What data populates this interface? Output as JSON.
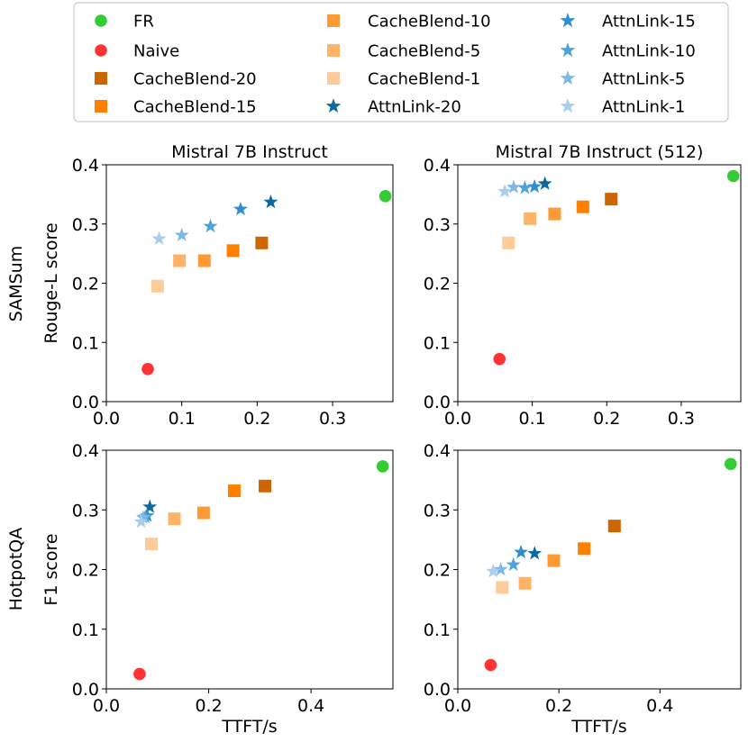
{
  "colors": {
    "FR": "#33cc33",
    "Naive": "#ff3333",
    "CacheBlend-20": "#cc6600",
    "CacheBlend-15": "#ff8000",
    "CacheBlend-10": "#ff9933",
    "CacheBlend-5": "#ffb366",
    "CacheBlend-1": "#ffcc99",
    "AttnLink-20": "#0b6aa2",
    "AttnLink-15": "#2e8fcf",
    "AttnLink-10": "#4fa3d9",
    "AttnLink-5": "#7fb8e3",
    "AttnLink-1": "#a9cdeb"
  },
  "legend": {
    "entries": [
      {
        "label": "FR",
        "marker": "circle"
      },
      {
        "label": "Naive",
        "marker": "circle"
      },
      {
        "label": "CacheBlend-20",
        "marker": "square"
      },
      {
        "label": "CacheBlend-15",
        "marker": "square"
      },
      {
        "label": "CacheBlend-10",
        "marker": "square"
      },
      {
        "label": "CacheBlend-5",
        "marker": "square"
      },
      {
        "label": "CacheBlend-1",
        "marker": "square"
      },
      {
        "label": "AttnLink-20",
        "marker": "star"
      },
      {
        "label": "AttnLink-15",
        "marker": "star"
      },
      {
        "label": "AttnLink-10",
        "marker": "star"
      },
      {
        "label": "AttnLink-5",
        "marker": "star"
      },
      {
        "label": "AttnLink-1",
        "marker": "star"
      }
    ]
  },
  "row_labels": [
    "SAMSum",
    "HotpotQA"
  ],
  "chart_data": [
    {
      "type": "scatter",
      "title": "Mistral 7B Instruct",
      "xlabel": "",
      "ylabel": "Rouge-L score",
      "xlim": [
        0.0,
        0.38
      ],
      "ylim": [
        0.0,
        0.4
      ],
      "xticks": [
        "0.0",
        "0.1",
        "0.2",
        "0.3"
      ],
      "xtick_values": [
        0.0,
        0.1,
        0.2,
        0.3
      ],
      "yticks": [
        "0.0",
        "0.1",
        "0.2",
        "0.3",
        "0.4"
      ],
      "ytick_values": [
        0.0,
        0.1,
        0.2,
        0.3,
        0.4
      ],
      "points": [
        {
          "series": "FR",
          "x": 0.37,
          "y": 0.347
        },
        {
          "series": "Naive",
          "x": 0.055,
          "y": 0.055
        },
        {
          "series": "CacheBlend-20",
          "x": 0.206,
          "y": 0.268
        },
        {
          "series": "CacheBlend-15",
          "x": 0.168,
          "y": 0.255
        },
        {
          "series": "CacheBlend-10",
          "x": 0.13,
          "y": 0.238
        },
        {
          "series": "CacheBlend-5",
          "x": 0.097,
          "y": 0.238
        },
        {
          "series": "CacheBlend-1",
          "x": 0.068,
          "y": 0.195
        },
        {
          "series": "AttnLink-20",
          "x": 0.218,
          "y": 0.337
        },
        {
          "series": "AttnLink-15",
          "x": 0.178,
          "y": 0.325
        },
        {
          "series": "AttnLink-10",
          "x": 0.138,
          "y": 0.296
        },
        {
          "series": "AttnLink-5",
          "x": 0.1,
          "y": 0.281
        },
        {
          "series": "AttnLink-1",
          "x": 0.07,
          "y": 0.275
        }
      ]
    },
    {
      "type": "scatter",
      "title": "Mistral 7B Instruct (512)",
      "xlabel": "",
      "ylabel": "",
      "xlim": [
        0.0,
        0.38
      ],
      "ylim": [
        0.0,
        0.4
      ],
      "xticks": [
        "0.0",
        "0.1",
        "0.2",
        "0.3"
      ],
      "xtick_values": [
        0.0,
        0.1,
        0.2,
        0.3
      ],
      "yticks": [
        "0.0",
        "0.1",
        "0.2",
        "0.3",
        "0.4"
      ],
      "ytick_values": [
        0.0,
        0.1,
        0.2,
        0.3,
        0.4
      ],
      "points": [
        {
          "series": "FR",
          "x": 0.37,
          "y": 0.381
        },
        {
          "series": "Naive",
          "x": 0.056,
          "y": 0.072
        },
        {
          "series": "CacheBlend-20",
          "x": 0.206,
          "y": 0.342
        },
        {
          "series": "CacheBlend-15",
          "x": 0.168,
          "y": 0.329
        },
        {
          "series": "CacheBlend-10",
          "x": 0.13,
          "y": 0.317
        },
        {
          "series": "CacheBlend-5",
          "x": 0.097,
          "y": 0.309
        },
        {
          "series": "CacheBlend-1",
          "x": 0.068,
          "y": 0.268
        },
        {
          "series": "AttnLink-20",
          "x": 0.117,
          "y": 0.368
        },
        {
          "series": "AttnLink-15",
          "x": 0.103,
          "y": 0.363
        },
        {
          "series": "AttnLink-10",
          "x": 0.09,
          "y": 0.361
        },
        {
          "series": "AttnLink-5",
          "x": 0.075,
          "y": 0.362
        },
        {
          "series": "AttnLink-1",
          "x": 0.063,
          "y": 0.355
        }
      ]
    },
    {
      "type": "scatter",
      "title": "",
      "xlabel": "TTFT/s",
      "ylabel": "F1 score",
      "xlim": [
        0.0,
        0.56
      ],
      "ylim": [
        0.0,
        0.4
      ],
      "xticks": [
        "0.0",
        "0.2",
        "0.4"
      ],
      "xtick_values": [
        0.0,
        0.2,
        0.4
      ],
      "yticks": [
        "0.0",
        "0.1",
        "0.2",
        "0.3",
        "0.4"
      ],
      "ytick_values": [
        0.0,
        0.1,
        0.2,
        0.3,
        0.4
      ],
      "points": [
        {
          "series": "FR",
          "x": 0.54,
          "y": 0.373
        },
        {
          "series": "Naive",
          "x": 0.065,
          "y": 0.025
        },
        {
          "series": "CacheBlend-20",
          "x": 0.31,
          "y": 0.34
        },
        {
          "series": "CacheBlend-15",
          "x": 0.25,
          "y": 0.332
        },
        {
          "series": "CacheBlend-10",
          "x": 0.19,
          "y": 0.295
        },
        {
          "series": "CacheBlend-5",
          "x": 0.133,
          "y": 0.285
        },
        {
          "series": "CacheBlend-1",
          "x": 0.088,
          "y": 0.243
        },
        {
          "series": "AttnLink-20",
          "x": 0.085,
          "y": 0.305
        },
        {
          "series": "AttnLink-15",
          "x": 0.08,
          "y": 0.29
        },
        {
          "series": "AttnLink-10",
          "x": 0.076,
          "y": 0.288
        },
        {
          "series": "AttnLink-5",
          "x": 0.072,
          "y": 0.287
        },
        {
          "series": "AttnLink-1",
          "x": 0.068,
          "y": 0.28
        }
      ]
    },
    {
      "type": "scatter",
      "title": "",
      "xlabel": "TTFT/s",
      "ylabel": "",
      "xlim": [
        0.0,
        0.56
      ],
      "ylim": [
        0.0,
        0.4
      ],
      "xticks": [
        "0.0",
        "0.2",
        "0.4"
      ],
      "xtick_values": [
        0.0,
        0.2,
        0.4
      ],
      "yticks": [
        "0.0",
        "0.1",
        "0.2",
        "0.3",
        "0.4"
      ],
      "ytick_values": [
        0.0,
        0.1,
        0.2,
        0.3,
        0.4
      ],
      "points": [
        {
          "series": "FR",
          "x": 0.54,
          "y": 0.377
        },
        {
          "series": "Naive",
          "x": 0.065,
          "y": 0.04
        },
        {
          "series": "CacheBlend-20",
          "x": 0.31,
          "y": 0.273
        },
        {
          "series": "CacheBlend-15",
          "x": 0.25,
          "y": 0.235
        },
        {
          "series": "CacheBlend-10",
          "x": 0.19,
          "y": 0.215
        },
        {
          "series": "CacheBlend-5",
          "x": 0.133,
          "y": 0.177
        },
        {
          "series": "CacheBlend-1",
          "x": 0.088,
          "y": 0.17
        },
        {
          "series": "AttnLink-20",
          "x": 0.152,
          "y": 0.227
        },
        {
          "series": "AttnLink-15",
          "x": 0.125,
          "y": 0.229
        },
        {
          "series": "AttnLink-10",
          "x": 0.11,
          "y": 0.208
        },
        {
          "series": "AttnLink-5",
          "x": 0.085,
          "y": 0.2
        },
        {
          "series": "AttnLink-1",
          "x": 0.07,
          "y": 0.197
        }
      ]
    }
  ]
}
